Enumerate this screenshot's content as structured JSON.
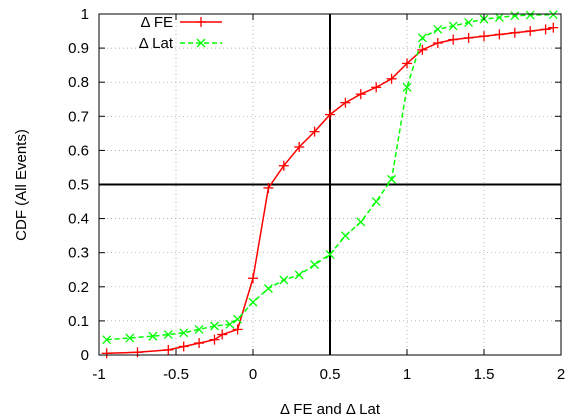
{
  "chart_data": {
    "type": "line",
    "title": "",
    "xlabel": "Δ FE and Δ Lat",
    "ylabel": "CDF (All Events)",
    "xlim": [
      -1,
      2
    ],
    "ylim": [
      0,
      1
    ],
    "x_ticks": [
      "-1",
      "-0.5",
      "0",
      "0.5",
      "1",
      "1.5",
      "2"
    ],
    "y_ticks": [
      "0",
      "0.1",
      "0.2",
      "0.3",
      "0.4",
      "0.5",
      "0.6",
      "0.7",
      "0.8",
      "0.9",
      "1"
    ],
    "grid": true,
    "reference_lines": {
      "x": 0.5,
      "y": 0.5
    },
    "legend_position": "top-left",
    "series": [
      {
        "name": "Δ FE",
        "color": "#ff0000",
        "marker": "plus",
        "line_style": "solid",
        "x": [
          -0.95,
          -0.75,
          -0.55,
          -0.45,
          -0.35,
          -0.25,
          -0.2,
          -0.1,
          0.0,
          0.1,
          0.2,
          0.3,
          0.4,
          0.5,
          0.6,
          0.7,
          0.8,
          0.9,
          1.0,
          1.1,
          1.2,
          1.3,
          1.4,
          1.5,
          1.6,
          1.7,
          1.8,
          1.9,
          1.95
        ],
        "y": [
          0.005,
          0.008,
          0.015,
          0.025,
          0.035,
          0.045,
          0.06,
          0.075,
          0.225,
          0.49,
          0.555,
          0.61,
          0.655,
          0.705,
          0.74,
          0.765,
          0.785,
          0.81,
          0.855,
          0.895,
          0.915,
          0.925,
          0.93,
          0.935,
          0.94,
          0.945,
          0.95,
          0.955,
          0.96
        ]
      },
      {
        "name": "Δ Lat",
        "color": "#00ff00",
        "marker": "x",
        "line_style": "dashed",
        "x": [
          -0.95,
          -0.8,
          -0.65,
          -0.55,
          -0.45,
          -0.35,
          -0.25,
          -0.15,
          -0.1,
          0.0,
          0.1,
          0.2,
          0.3,
          0.4,
          0.5,
          0.6,
          0.7,
          0.8,
          0.9,
          1.0,
          1.1,
          1.2,
          1.3,
          1.4,
          1.5,
          1.6,
          1.7,
          1.8,
          1.95
        ],
        "y": [
          0.045,
          0.05,
          0.055,
          0.06,
          0.065,
          0.075,
          0.085,
          0.09,
          0.105,
          0.155,
          0.195,
          0.22,
          0.235,
          0.265,
          0.295,
          0.35,
          0.39,
          0.45,
          0.515,
          0.785,
          0.93,
          0.955,
          0.965,
          0.975,
          0.985,
          0.99,
          0.995,
          0.997,
          0.998
        ]
      }
    ]
  }
}
